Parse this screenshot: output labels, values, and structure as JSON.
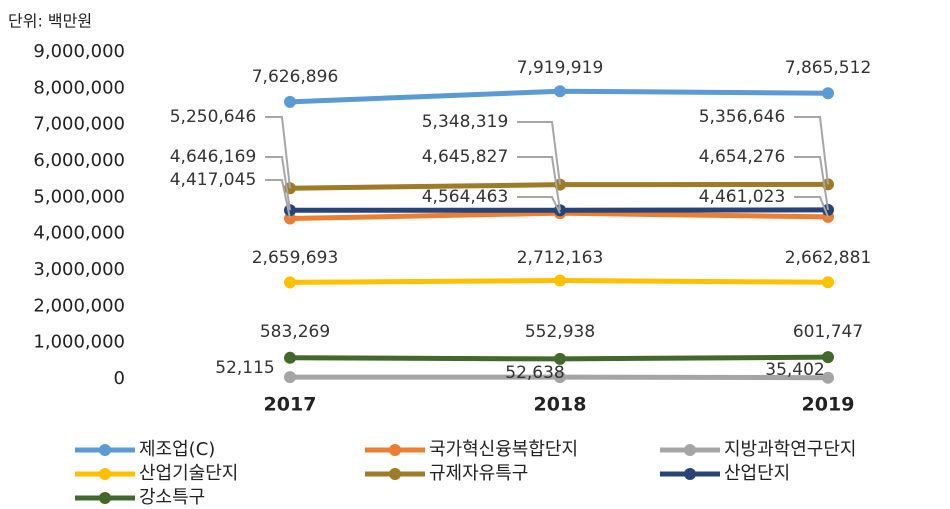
{
  "chart_data": {
    "type": "line",
    "ylabel": "단위: 백만원",
    "categories": [
      "2017",
      "2018",
      "2019"
    ],
    "ylim": [
      0,
      9000000
    ],
    "yticks": [
      0,
      {
        "value": 1000000,
        "label": "1,000,000"
      },
      {
        "value": 2000000,
        "label": "2,000,000"
      },
      {
        "value": 3000000,
        "label": "3,000,000"
      },
      {
        "value": 4000000,
        "label": "4,000,000"
      },
      {
        "value": 5000000,
        "label": "5,000,000"
      },
      {
        "value": 6000000,
        "label": "6,000,000"
      },
      {
        "value": 7000000,
        "label": "7,000,000"
      },
      {
        "value": 8000000,
        "label": "8,000,000"
      },
      {
        "value": 9000000,
        "label": "9,000,000"
      }
    ],
    "series": [
      {
        "name": "제조업(C)",
        "color": "#5b9bd5",
        "values": [
          7626896,
          7919919,
          7865512
        ],
        "value_labels": [
          "7,626,896",
          "7,919,919",
          "7,865,512"
        ]
      },
      {
        "name": "국가혁신융복합단지",
        "color": "#ed7d31",
        "values": [
          4417045,
          4564463,
          4461023
        ],
        "value_labels": [
          "4,417,045",
          "4,564,463",
          "4,461,023"
        ]
      },
      {
        "name": "지방과학연구단지",
        "color": "#a5a5a5",
        "values": [
          52115,
          52638,
          35402
        ],
        "value_labels": [
          "52,115",
          "52,638",
          "35,402"
        ]
      },
      {
        "name": "산업기술단지",
        "color": "#ffc000",
        "values": [
          2659693,
          2712163,
          2662881
        ],
        "value_labels": [
          "2,659,693",
          "2,712,163",
          "2,662,881"
        ]
      },
      {
        "name": "규제자유특구",
        "color": "#9e7b27",
        "values": [
          5250646,
          5348319,
          5356646
        ],
        "value_labels": [
          "5,250,646",
          "5,348,319",
          "5,356,646"
        ]
      },
      {
        "name": "산업단지",
        "color": "#264478",
        "values": [
          4646169,
          4645827,
          4654276
        ],
        "value_labels": [
          "4,646,169",
          "4,645,827",
          "4,654,276"
        ]
      },
      {
        "name": "강소특구",
        "color": "#43682b",
        "values": [
          583269,
          552938,
          601747
        ],
        "value_labels": [
          "583,269",
          "552,938",
          "601,747"
        ]
      }
    ]
  }
}
